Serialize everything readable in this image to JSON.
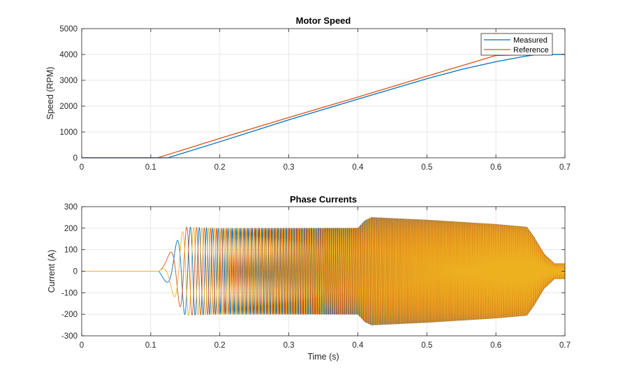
{
  "chart_data": [
    {
      "type": "line",
      "title": "Motor Speed",
      "xlabel": "",
      "ylabel": "Speed (RPM)",
      "xlim": [
        0,
        0.7
      ],
      "ylim": [
        0,
        5000
      ],
      "xticks": [
        "0",
        "0.1",
        "0.2",
        "0.3",
        "0.4",
        "0.5",
        "0.6",
        "0.7"
      ],
      "yticks": [
        "0",
        "1000",
        "2000",
        "3000",
        "4000",
        "5000"
      ],
      "grid": true,
      "legend": "top-right",
      "series": [
        {
          "name": "Measured",
          "color": "#0072bd",
          "x": [
            0,
            0.11,
            0.125,
            0.2,
            0.3,
            0.4,
            0.5,
            0.55,
            0.6,
            0.64,
            0.66,
            0.7
          ],
          "y": [
            0,
            0,
            0,
            620,
            1470,
            2270,
            3060,
            3420,
            3720,
            3920,
            4000,
            4000
          ]
        },
        {
          "name": "Reference",
          "color": "#d95319",
          "x": [
            0,
            0.11,
            0.2,
            0.3,
            0.4,
            0.5,
            0.6,
            0.66,
            0.7
          ],
          "y": [
            0,
            0,
            750,
            1560,
            2350,
            3160,
            3960,
            4000,
            4000
          ]
        }
      ]
    },
    {
      "type": "line",
      "title": "Phase Currents",
      "xlabel": "Time (s)",
      "ylabel": "Current (A)",
      "xlim": [
        0,
        0.7
      ],
      "ylim": [
        -300,
        300
      ],
      "xticks": [
        "0",
        "0.1",
        "0.2",
        "0.3",
        "0.4",
        "0.5",
        "0.6",
        "0.7"
      ],
      "yticks": [
        "-300",
        "-200",
        "-100",
        "0",
        "100",
        "200",
        "300"
      ],
      "grid": true,
      "colors": [
        "#0072bd",
        "#d95319",
        "#edb120"
      ],
      "envelope": {
        "t": [
          0,
          0.112,
          0.15,
          0.2,
          0.4,
          0.41,
          0.42,
          0.5,
          0.6,
          0.645,
          0.655,
          0.67,
          0.685,
          0.7
        ],
        "amp": [
          0,
          0,
          205,
          200,
          200,
          235,
          250,
          238,
          218,
          205,
          160,
          80,
          35,
          35
        ]
      },
      "frequency": {
        "t": [
          0.112,
          0.15,
          0.2,
          0.3,
          0.4,
          0.5,
          0.6,
          0.7
        ],
        "hz": [
          0,
          55,
          135,
          255,
          375,
          495,
          610,
          650
        ]
      }
    }
  ]
}
